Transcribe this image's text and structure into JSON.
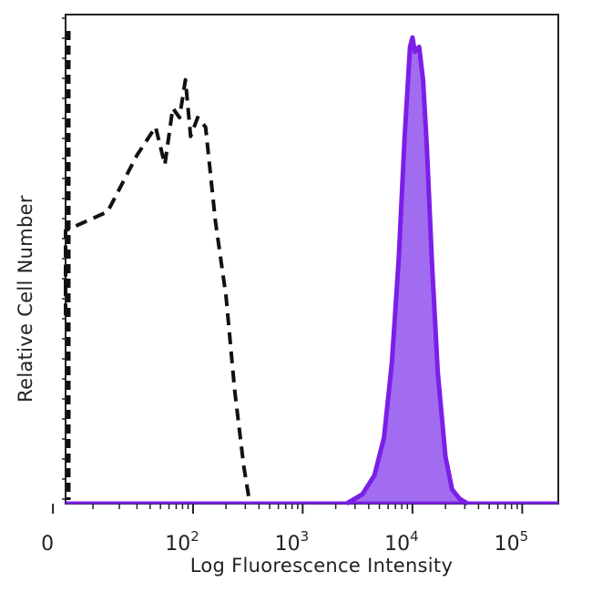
{
  "chart_data": {
    "type": "area",
    "title": "",
    "xlabel": "Log Fluorescence Intensity",
    "ylabel": "Relative Cell Number",
    "x_scale": "biexponential (log above ~10^2, linear near 0)",
    "y_scale": "relative",
    "ylim": [
      0,
      100
    ],
    "grid": false,
    "legend": "none",
    "x_tick_labels": [
      {
        "base": "0",
        "exp": ""
      },
      {
        "base": "10",
        "exp": "2"
      },
      {
        "base": "10",
        "exp": "3"
      },
      {
        "base": "10",
        "exp": "4"
      },
      {
        "base": "10",
        "exp": "5"
      }
    ],
    "series": [
      {
        "style": "dashed-black-outline",
        "color": "#111111",
        "x": [
          -60,
          -45,
          -30,
          -15,
          0,
          15,
          30,
          45,
          55,
          65,
          75,
          85,
          95,
          110,
          130,
          160,
          200,
          240,
          290,
          330
        ],
        "y": [
          40,
          48,
          44,
          50,
          58,
          62,
          74,
          80,
          72,
          84,
          82,
          90,
          78,
          82,
          80,
          60,
          44,
          24,
          8,
          0
        ]
      },
      {
        "style": "filled-purple",
        "color": "#7b1fe8",
        "fill": "#a26cf0",
        "x": [
          2500,
          3500,
          4500,
          5500,
          6500,
          7500,
          8500,
          9500,
          10000,
          10500,
          11500,
          12500,
          13500,
          15000,
          17000,
          20000,
          23000,
          27000,
          32000
        ],
        "y": [
          0,
          2,
          6,
          14,
          30,
          52,
          78,
          97,
          99,
          96,
          97,
          90,
          76,
          52,
          28,
          10,
          3,
          1,
          0
        ]
      }
    ]
  }
}
